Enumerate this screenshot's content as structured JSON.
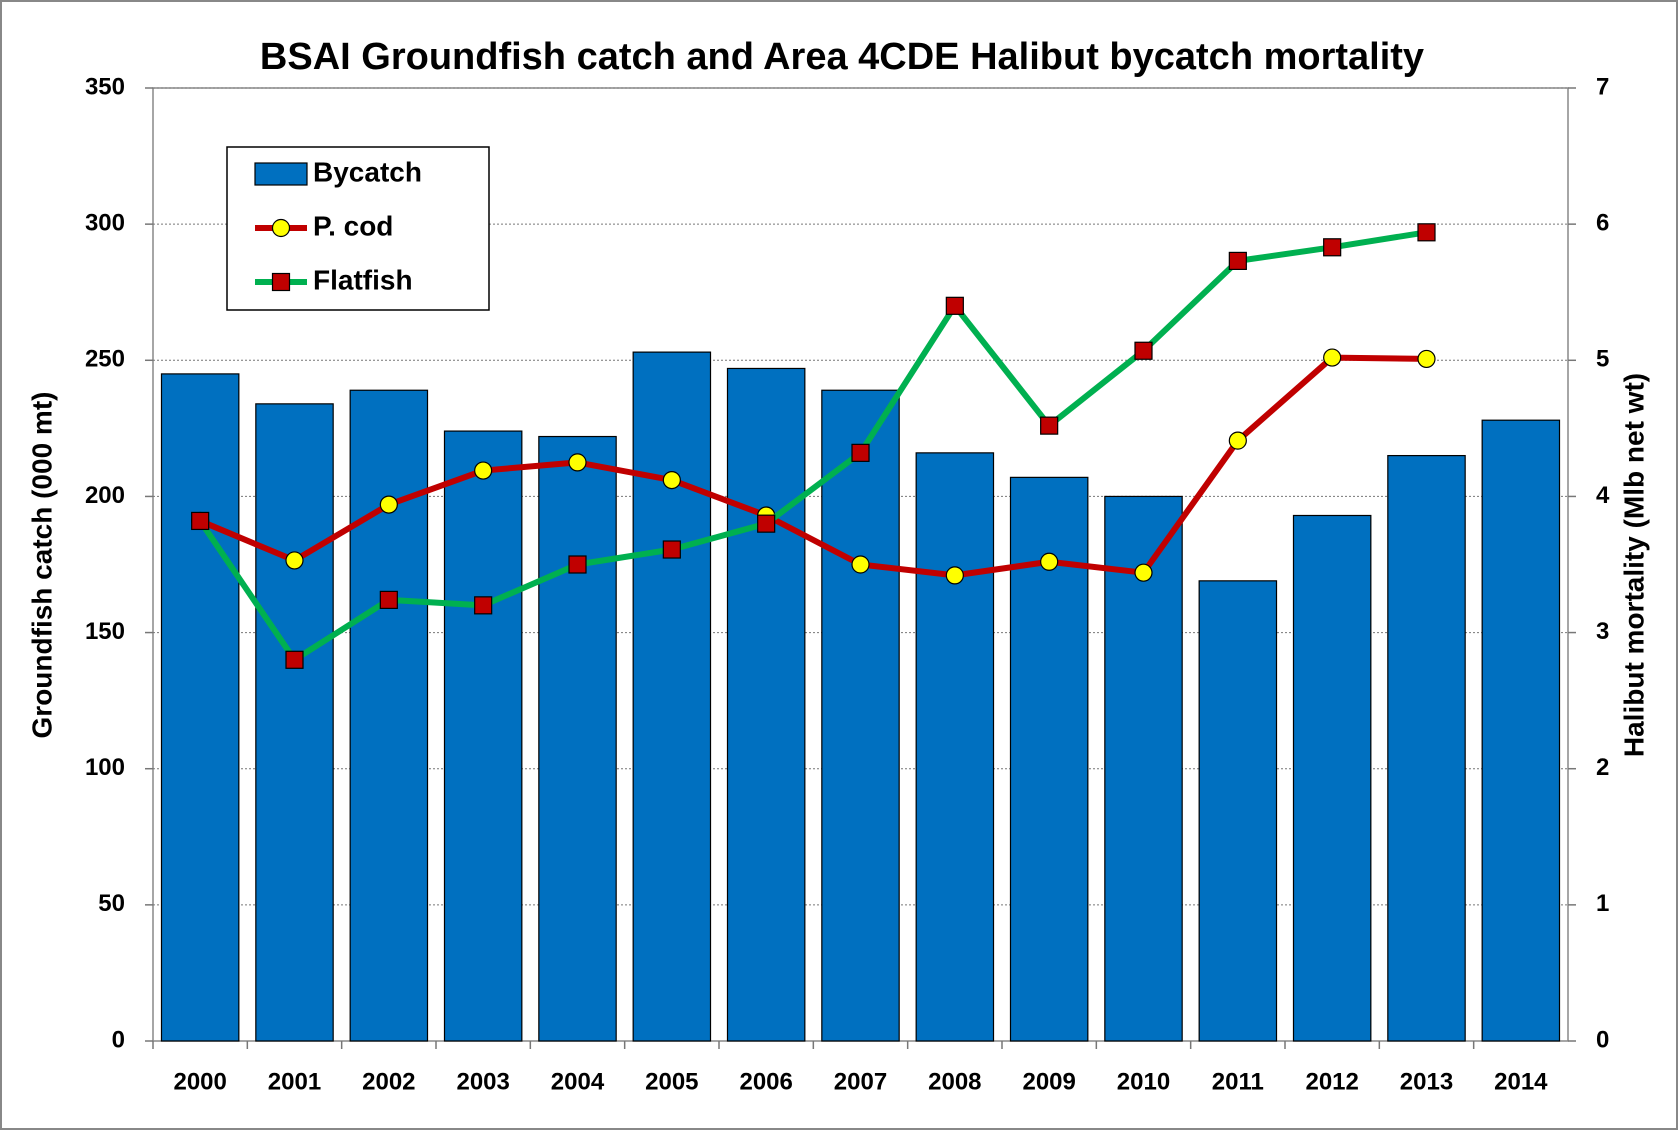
{
  "chart_data": {
    "type": "bar-line",
    "title": "BSAI Groundfish catch and Area 4CDE Halibut bycatch mortality",
    "y_label": "Groundfish catch (000 mt)",
    "y2_label": "Halibut mortality (Mlb net wt)",
    "categories": [
      "2000",
      "2001",
      "2002",
      "2003",
      "2004",
      "2005",
      "2006",
      "2007",
      "2008",
      "2009",
      "2010",
      "2011",
      "2012",
      "2013",
      "2014"
    ],
    "ylim": [
      0,
      350
    ],
    "yticks": [
      0,
      50,
      100,
      150,
      200,
      250,
      300,
      350
    ],
    "y2lim": [
      0,
      7
    ],
    "y2ticks": [
      0,
      1,
      2,
      3,
      4,
      5,
      6,
      7
    ],
    "grid": true,
    "legend": "upper left",
    "series": [
      {
        "name": "Bycatch",
        "type": "bar",
        "color": "#0070c0",
        "values": [
          245,
          234,
          239,
          224,
          222,
          253,
          247,
          239,
          216,
          207,
          200,
          169,
          193,
          215,
          228
        ]
      },
      {
        "name": "P. cod",
        "type": "line",
        "axis": "y2",
        "color": "#c00000",
        "marker_color": "#ffff00",
        "marker": "circle",
        "values": [
          3.82,
          3.53,
          3.94,
          4.19,
          4.25,
          4.12,
          3.86,
          3.5,
          3.42,
          3.52,
          3.44,
          4.41,
          5.02,
          5.01,
          null
        ]
      },
      {
        "name": "Flatfish",
        "type": "line",
        "axis": "y2",
        "color": "#00b050",
        "marker_color": "#c00000",
        "marker": "square",
        "values": [
          3.82,
          2.8,
          3.24,
          3.2,
          3.5,
          3.61,
          3.8,
          4.32,
          5.4,
          4.52,
          5.07,
          5.73,
          5.83,
          5.94,
          null
        ]
      }
    ]
  }
}
